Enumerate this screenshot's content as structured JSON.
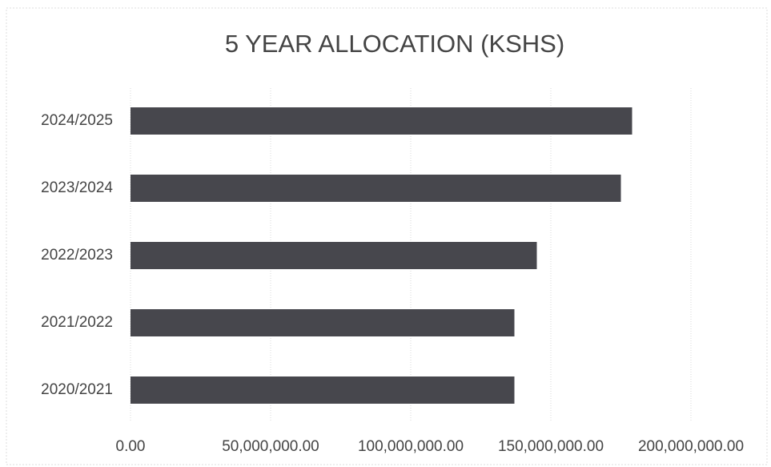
{
  "chart_data": {
    "type": "bar",
    "orientation": "horizontal",
    "title": "5 YEAR ALLOCATION (KSHS)",
    "categories": [
      "2024/2025",
      "2023/2024",
      "2022/2023",
      "2021/2022",
      "2020/2021"
    ],
    "values": [
      179000000,
      175000000,
      145000000,
      137000000,
      137000000
    ],
    "color": "#47474d",
    "xlim": [
      0,
      200000000
    ],
    "xticks": [
      {
        "value": 0,
        "label": "0.00"
      },
      {
        "value": 50000000,
        "label": "50,000,000.00"
      },
      {
        "value": 100000000,
        "label": "100,000,000.00"
      },
      {
        "value": 150000000,
        "label": "150,000,000.00"
      },
      {
        "value": 200000000,
        "label": "200,000,000.00"
      }
    ],
    "grid": true
  }
}
